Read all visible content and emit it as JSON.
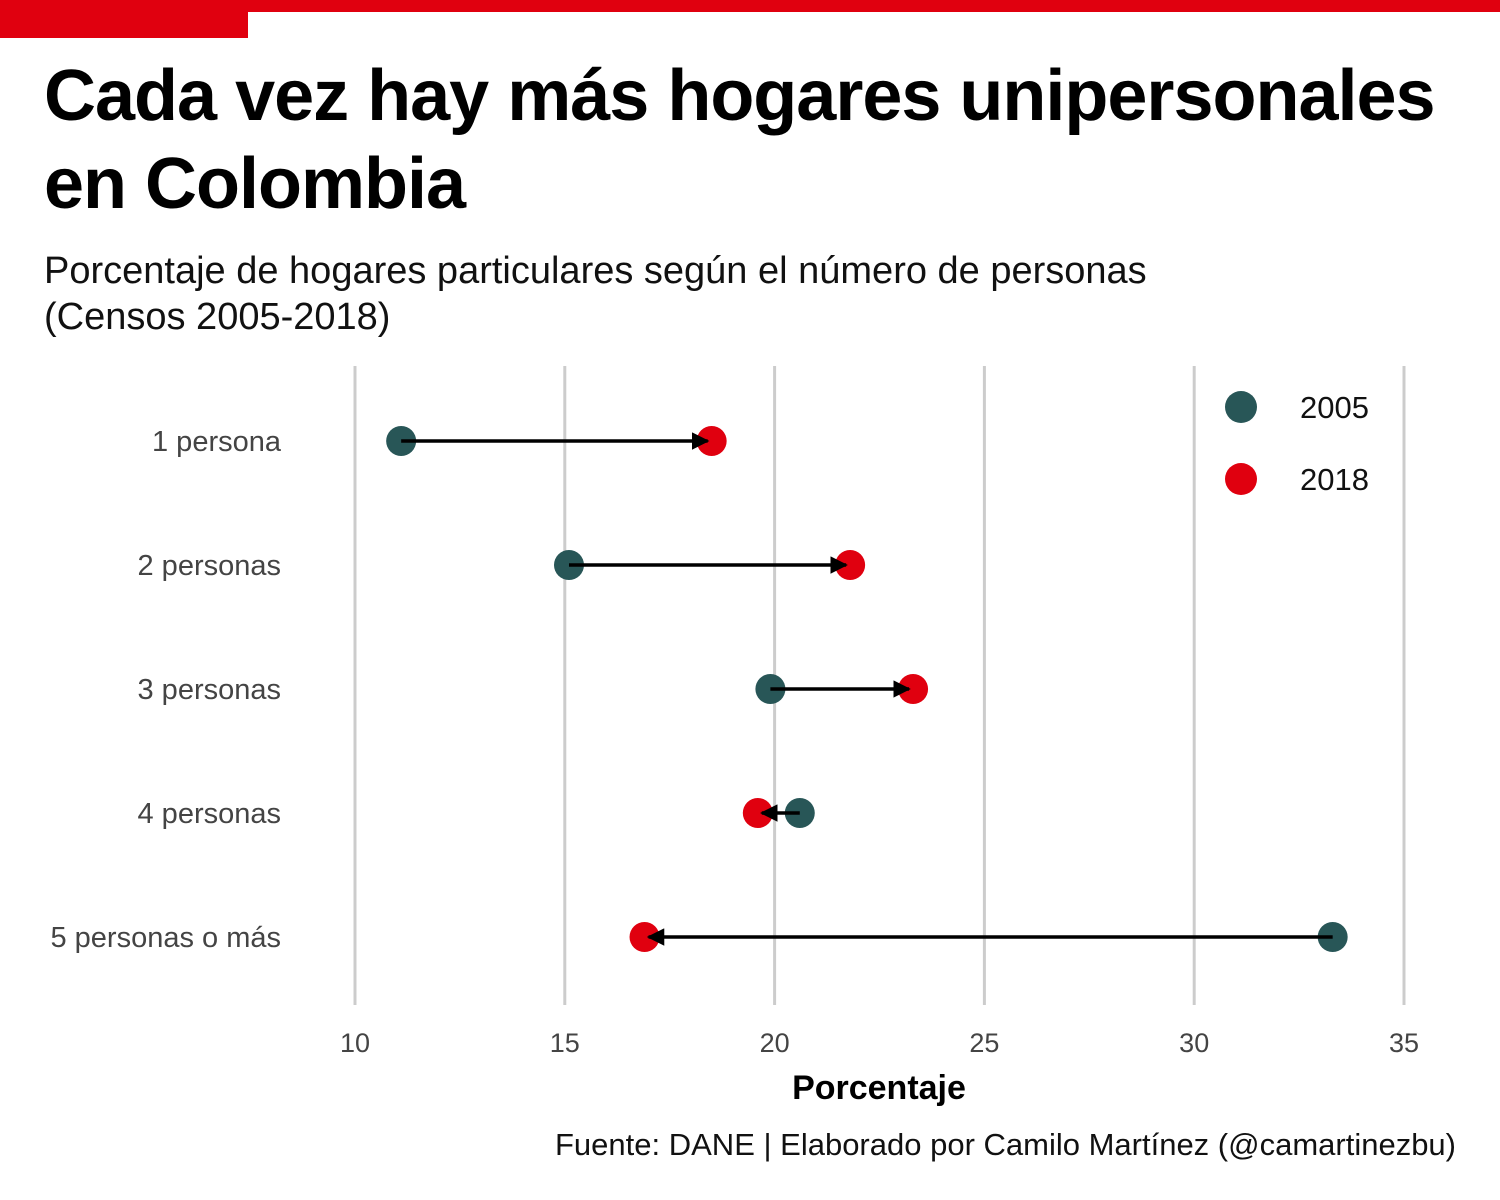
{
  "header": {
    "title": "Cada vez hay más hogares unipersonales en Colombia",
    "subtitle_line1": "Porcentaje de hogares particulares según el número de personas",
    "subtitle_line2": "(Censos 2005-2018)"
  },
  "caption": "Fuente: DANE | Elaborado por Camilo Martínez (@camartinezbu)",
  "colors": {
    "accent": "#E0000F",
    "series_2005": "#285657",
    "series_2018": "#E0000F",
    "grid": "#cccccc",
    "arrow": "#000000"
  },
  "chart_data": {
    "type": "dumbbell",
    "title": "Cada vez hay más hogares unipersonales en Colombia",
    "subtitle": "Porcentaje de hogares particulares según el número de personas (Censos 2005-2018)",
    "xlabel": "Porcentaje",
    "ylabel": "",
    "xlim": [
      10,
      35
    ],
    "xticks": [
      10,
      15,
      20,
      25,
      30,
      35
    ],
    "categories": [
      "1 persona",
      "2 personas",
      "3 personas",
      "4 personas",
      "5 personas o más"
    ],
    "series": [
      {
        "name": "2005",
        "values": [
          11.1,
          15.1,
          19.9,
          20.6,
          33.3
        ]
      },
      {
        "name": "2018",
        "values": [
          18.5,
          21.8,
          23.3,
          19.6,
          16.9
        ]
      }
    ],
    "arrows": "from 2005 to 2018",
    "grid": "vertical",
    "legend_position": "top-right"
  }
}
